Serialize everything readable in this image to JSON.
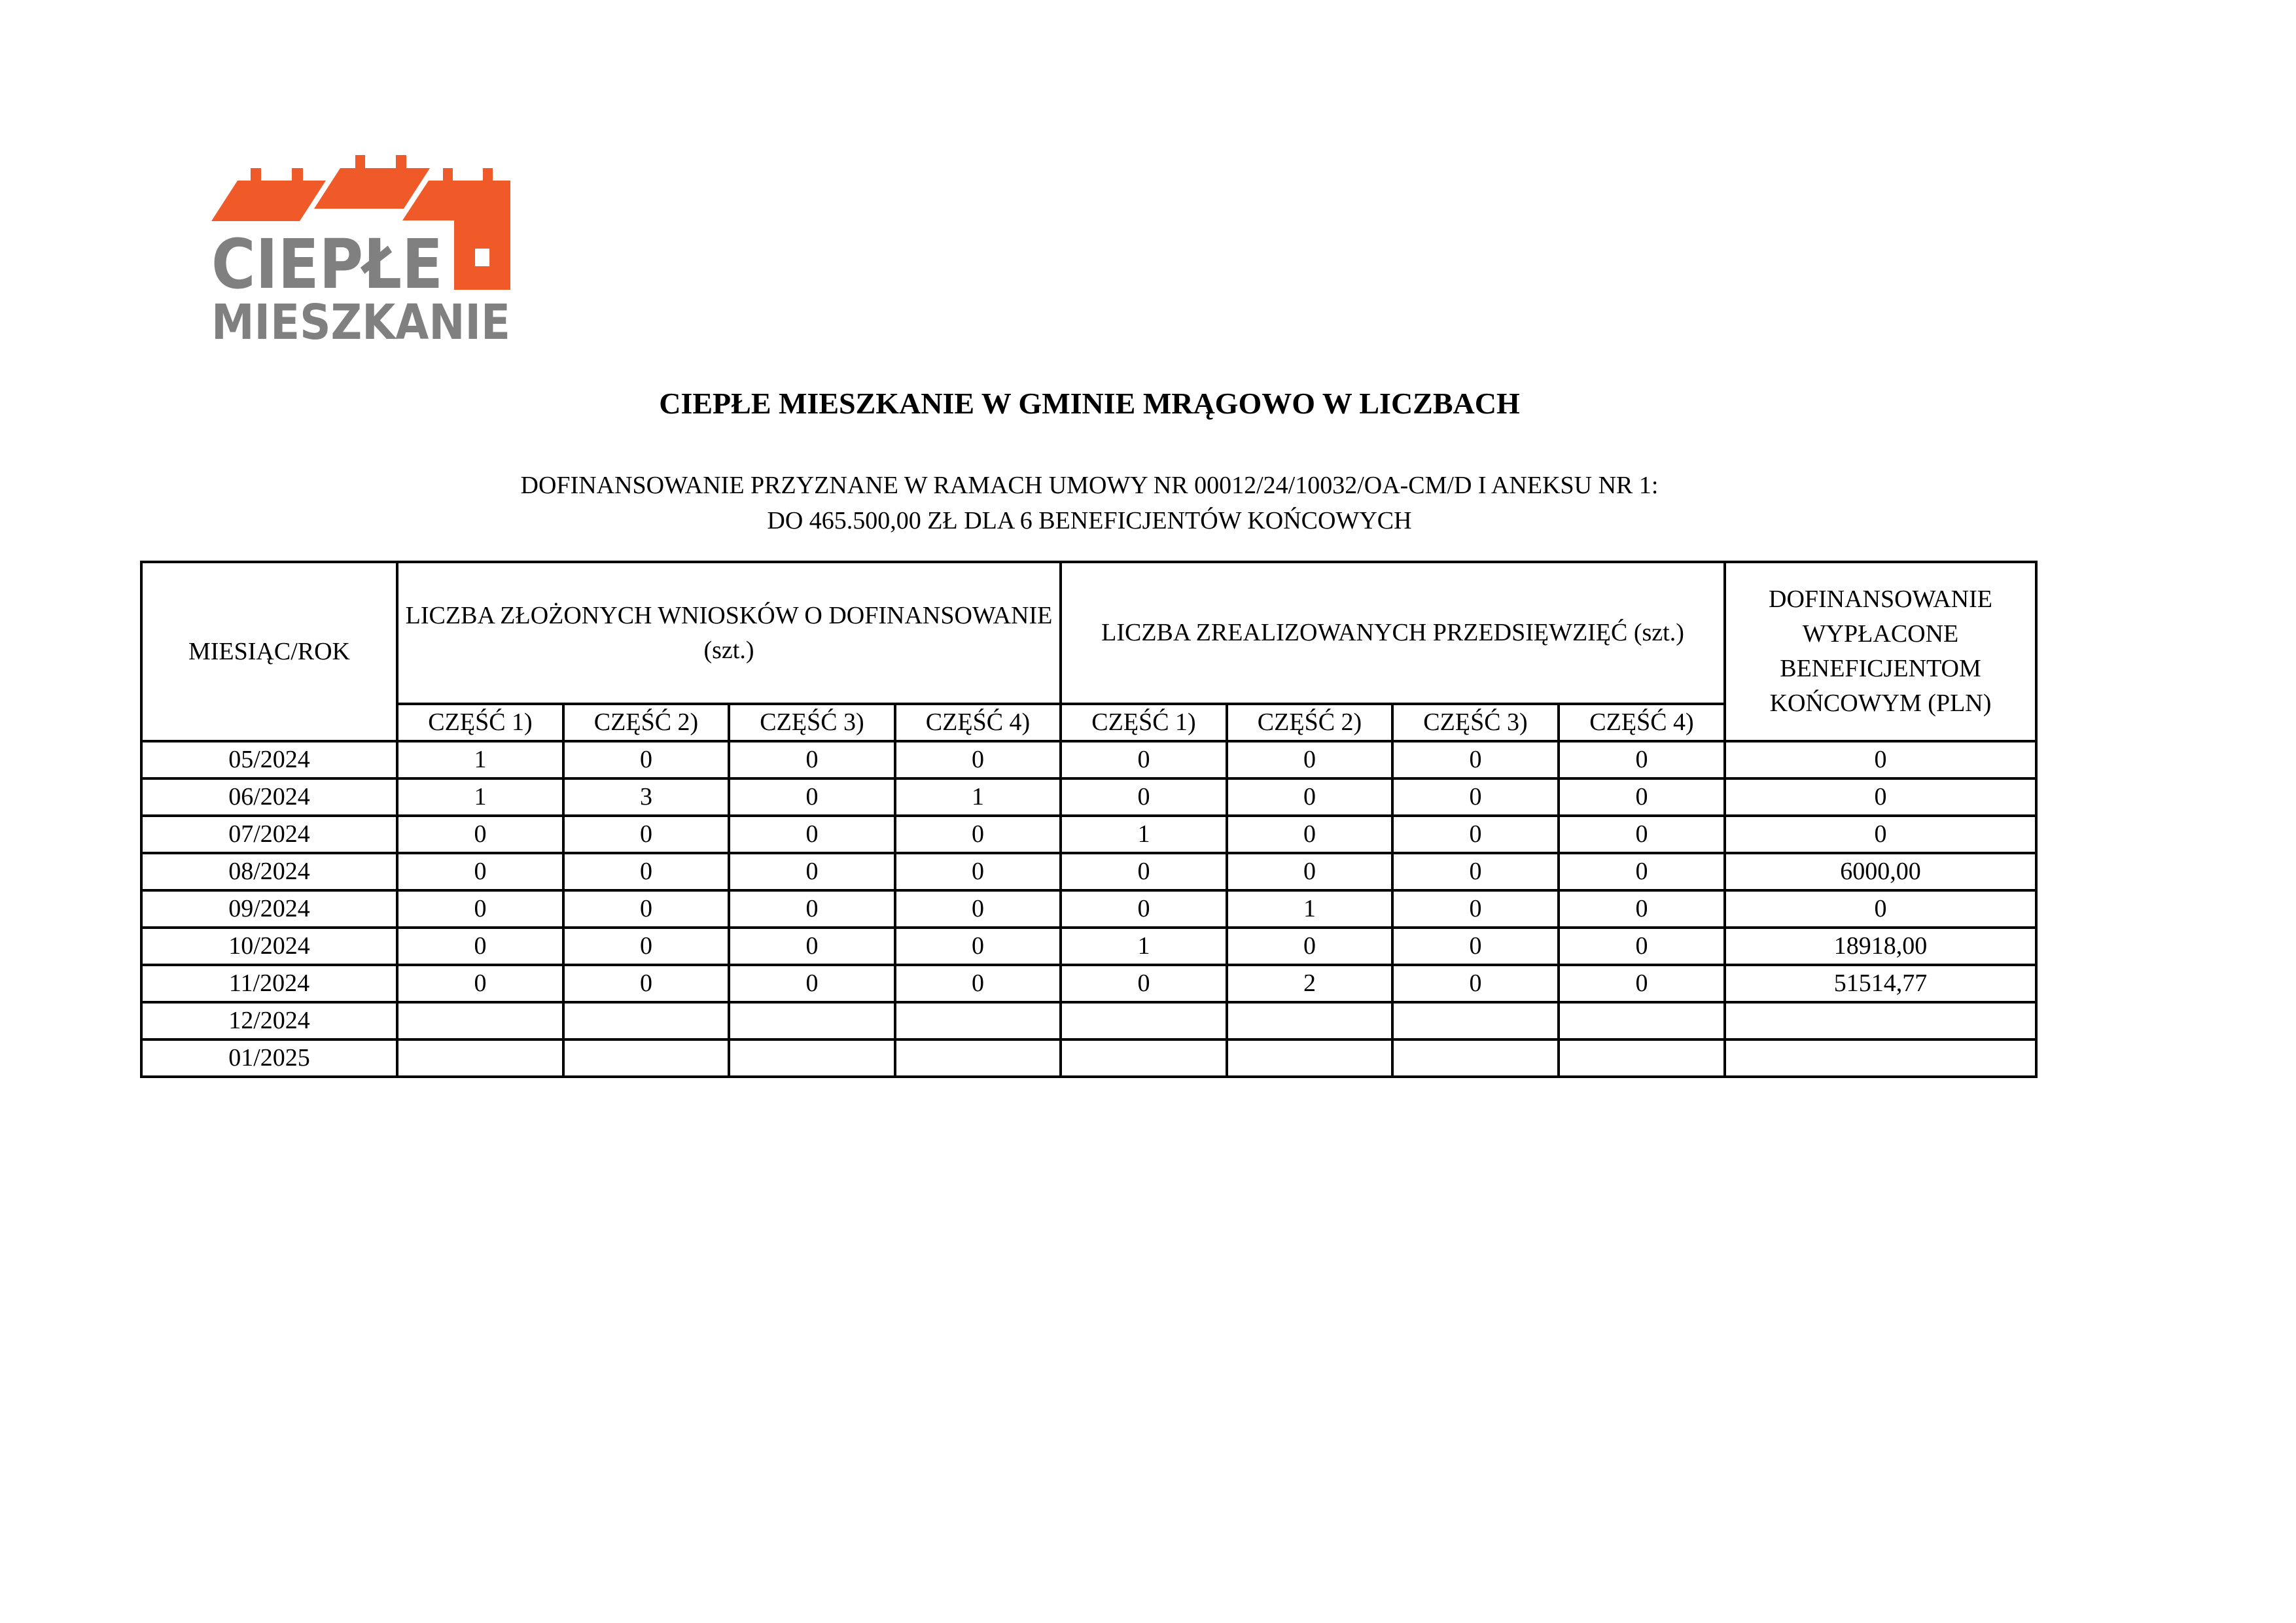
{
  "logo": {
    "line1": "CIEPŁE",
    "line2": "MIESZKANIE",
    "colors": {
      "orange": "#F05A28",
      "gray": "#808080"
    }
  },
  "title": "CIEPŁE MIESZKANIE W GMINIE MRĄGOWO W LICZBACH",
  "subtitle": {
    "line1": "DOFINANSOWANIE PRZYZNANE W RAMACH UMOWY NR 00012/24/10032/OA-CM/D I ANEKSU NR 1:",
    "line2": "DO 465.500,00 ZŁ DLA 6 BENEFICJENTÓW KOŃCOWYCH"
  },
  "table": {
    "headers": {
      "month": "MIESIĄC/ROK",
      "applications": "LICZBA ZŁOŻONYCH WNIOSKÓW O DOFINANSOWANIE (szt.)",
      "completed": "LICZBA ZREALIZOWANYCH PRZEDSIĘWZIĘĆ (szt.)",
      "paid": "DOFINANSOWANIE WYPŁACONE BENEFICJENTOM KOŃCOWYM (PLN)",
      "parts": [
        "CZĘŚĆ 1)",
        "CZĘŚĆ 2)",
        "CZĘŚĆ 3)",
        "CZĘŚĆ 4)"
      ]
    },
    "rows": [
      {
        "month": "05/2024",
        "cells": [
          "1",
          "0",
          "0",
          "0",
          "0",
          "0",
          "0",
          "0",
          "0"
        ]
      },
      {
        "month": "06/2024",
        "cells": [
          "1",
          "3",
          "0",
          "1",
          "0",
          "0",
          "0",
          "0",
          "0"
        ]
      },
      {
        "month": "07/2024",
        "cells": [
          "0",
          "0",
          "0",
          "0",
          "1",
          "0",
          "0",
          "0",
          "0"
        ]
      },
      {
        "month": "08/2024",
        "cells": [
          "0",
          "0",
          "0",
          "0",
          "0",
          "0",
          "0",
          "0",
          "6000,00"
        ]
      },
      {
        "month": "09/2024",
        "cells": [
          "0",
          "0",
          "0",
          "0",
          "0",
          "1",
          "0",
          "0",
          "0"
        ]
      },
      {
        "month": "10/2024",
        "cells": [
          "0",
          "0",
          "0",
          "0",
          "1",
          "0",
          "0",
          "0",
          "18918,00"
        ]
      },
      {
        "month": "11/2024",
        "cells": [
          "0",
          "0",
          "0",
          "0",
          "0",
          "2",
          "0",
          "0",
          "51514,77"
        ]
      },
      {
        "month": "12/2024",
        "cells": [
          "",
          "",
          "",
          "",
          "",
          "",
          "",
          "",
          ""
        ]
      },
      {
        "month": "01/2025",
        "cells": [
          "",
          "",
          "",
          "",
          "",
          "",
          "",
          "",
          ""
        ]
      }
    ]
  }
}
